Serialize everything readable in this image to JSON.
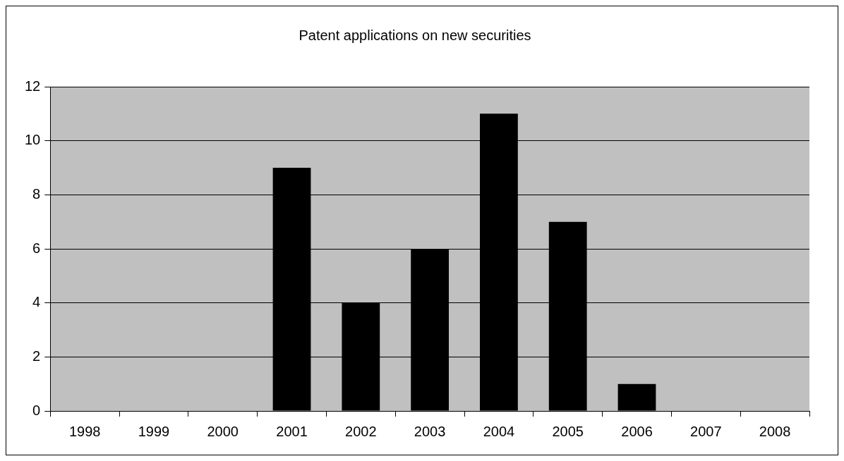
{
  "chart_data": {
    "type": "bar",
    "title": "Patent applications on new securities",
    "categories": [
      "1998",
      "1999",
      "2000",
      "2001",
      "2002",
      "2003",
      "2004",
      "2005",
      "2006",
      "2007",
      "2008"
    ],
    "values": [
      0,
      0,
      0,
      9,
      4,
      6,
      11,
      7,
      1,
      0,
      0
    ],
    "color": "#000000",
    "ylim": [
      0,
      12
    ],
    "yticks": [
      0,
      2,
      4,
      6,
      8,
      10,
      12
    ],
    "grid": "y",
    "legend": false
  }
}
